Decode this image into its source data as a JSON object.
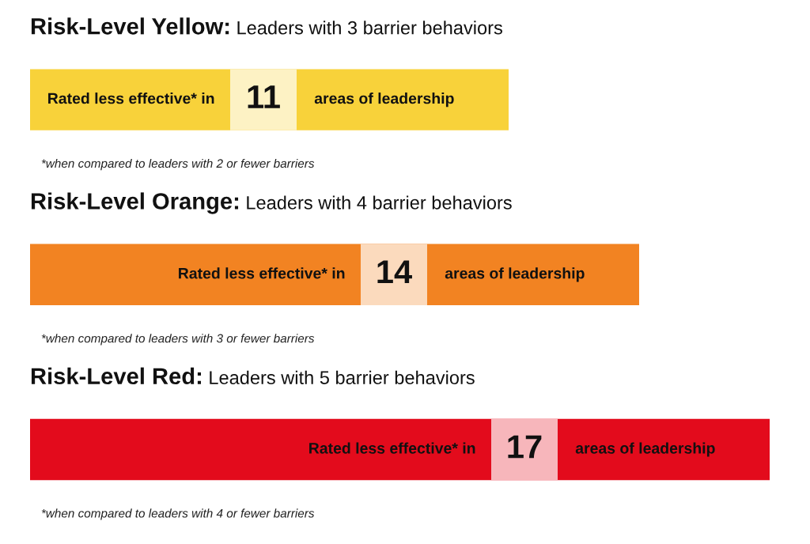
{
  "chart_data": {
    "type": "bar",
    "orientation": "horizontal",
    "categories": [
      "Risk-Level Yellow: Leaders with 3 barrier behaviors",
      "Risk-Level Orange: Leaders with 4 barrier behaviors",
      "Risk-Level Red: Leaders with 5 barrier behaviors"
    ],
    "values": [
      11,
      14,
      17
    ],
    "colors": [
      "#f8d23a",
      "#f28322",
      "#e30b1c"
    ],
    "data_labels": true,
    "annotations": [
      "Rated less effective* in",
      "areas of leadership",
      "*when compared to leaders with 2 or fewer barriers",
      "Rated less effective* in",
      "areas of leadership",
      "*when compared to leaders with 3 or fewer barriers",
      "Rated less effective* in",
      "areas of leadership",
      "*when compared to leaders with 4 or fewer barriers"
    ]
  }
}
